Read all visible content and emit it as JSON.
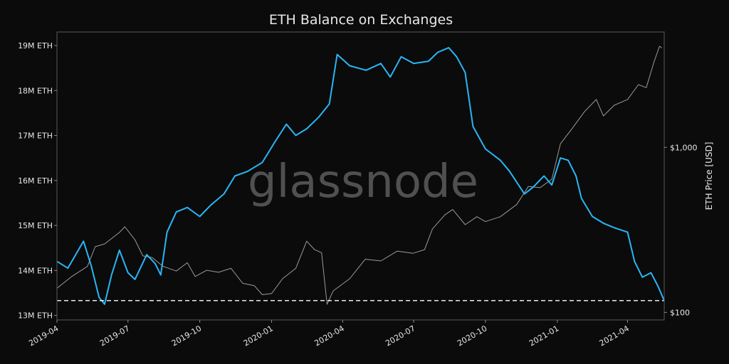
{
  "watermark": "glassnode",
  "chart_data": {
    "type": "line",
    "title": "ETH Balance on Exchanges",
    "xlabel": "",
    "ylabel_left": "",
    "ylabel_right": "ETH Price [USD]",
    "x_ticks": [
      "2019-04",
      "2019-07",
      "2019-10",
      "2020-01",
      "2020-04",
      "2020-07",
      "2020-10",
      "2021-01",
      "2021-04"
    ],
    "x_range": [
      "2019-04-01",
      "2021-05-18"
    ],
    "y_left": {
      "unit": "M ETH",
      "ylim": [
        12.9,
        19.3
      ],
      "ticks": [
        13,
        14,
        15,
        16,
        17,
        18,
        19
      ],
      "tick_labels": [
        "13M ETH",
        "14M ETH",
        "15M ETH",
        "16M ETH",
        "17M ETH",
        "18M ETH",
        "19M ETH"
      ]
    },
    "y_right": {
      "scale": "log",
      "ylim": [
        90,
        5000
      ],
      "ticks": [
        100,
        1000
      ],
      "tick_labels": [
        "$100",
        "$1,000"
      ]
    },
    "reference_line": {
      "value": 13.33,
      "axis": "left",
      "style": "dashed",
      "color": "#ffffff"
    },
    "series": [
      {
        "axis": "left",
        "color": "#29b6f6",
        "points": [
          [
            "2019-04-01",
            14.2
          ],
          [
            "2019-04-15",
            14.05
          ],
          [
            "2019-04-25",
            14.35
          ],
          [
            "2019-05-05",
            14.65
          ],
          [
            "2019-05-15",
            14.1
          ],
          [
            "2019-05-25",
            13.4
          ],
          [
            "2019-06-01",
            13.25
          ],
          [
            "2019-06-10",
            13.9
          ],
          [
            "2019-06-20",
            14.45
          ],
          [
            "2019-07-01",
            13.95
          ],
          [
            "2019-07-10",
            13.8
          ],
          [
            "2019-07-25",
            14.35
          ],
          [
            "2019-08-05",
            14.15
          ],
          [
            "2019-08-12",
            13.9
          ],
          [
            "2019-08-20",
            14.85
          ],
          [
            "2019-09-01",
            15.3
          ],
          [
            "2019-09-15",
            15.4
          ],
          [
            "2019-10-01",
            15.2
          ],
          [
            "2019-10-15",
            15.45
          ],
          [
            "2019-11-01",
            15.7
          ],
          [
            "2019-11-15",
            16.1
          ],
          [
            "2019-12-01",
            16.2
          ],
          [
            "2019-12-20",
            16.4
          ],
          [
            "2020-01-05",
            16.85
          ],
          [
            "2020-01-20",
            17.25
          ],
          [
            "2020-02-01",
            17.0
          ],
          [
            "2020-02-15",
            17.15
          ],
          [
            "2020-03-01",
            17.4
          ],
          [
            "2020-03-15",
            17.7
          ],
          [
            "2020-03-25",
            18.8
          ],
          [
            "2020-04-10",
            18.55
          ],
          [
            "2020-05-01",
            18.45
          ],
          [
            "2020-05-20",
            18.6
          ],
          [
            "2020-06-01",
            18.3
          ],
          [
            "2020-06-15",
            18.75
          ],
          [
            "2020-07-01",
            18.6
          ],
          [
            "2020-07-20",
            18.65
          ],
          [
            "2020-08-01",
            18.85
          ],
          [
            "2020-08-15",
            18.95
          ],
          [
            "2020-08-25",
            18.75
          ],
          [
            "2020-09-05",
            18.4
          ],
          [
            "2020-09-15",
            17.2
          ],
          [
            "2020-10-01",
            16.7
          ],
          [
            "2020-10-20",
            16.45
          ],
          [
            "2020-11-01",
            16.2
          ],
          [
            "2020-11-20",
            15.7
          ],
          [
            "2020-12-01",
            15.85
          ],
          [
            "2020-12-15",
            16.1
          ],
          [
            "2020-12-25",
            15.9
          ],
          [
            "2021-01-05",
            16.5
          ],
          [
            "2021-01-15",
            16.45
          ],
          [
            "2021-01-25",
            16.1
          ],
          [
            "2021-02-01",
            15.6
          ],
          [
            "2021-02-15",
            15.2
          ],
          [
            "2021-03-01",
            15.05
          ],
          [
            "2021-03-15",
            14.95
          ],
          [
            "2021-04-01",
            14.85
          ],
          [
            "2021-04-10",
            14.2
          ],
          [
            "2021-04-20",
            13.85
          ],
          [
            "2021-05-01",
            13.95
          ],
          [
            "2021-05-10",
            13.65
          ],
          [
            "2021-05-18",
            13.33
          ]
        ]
      },
      {
        "axis": "right",
        "color": "#9a9a9a",
        "points": [
          [
            "2019-04-01",
            140
          ],
          [
            "2019-04-20",
            165
          ],
          [
            "2019-05-10",
            190
          ],
          [
            "2019-05-20",
            250
          ],
          [
            "2019-06-01",
            260
          ],
          [
            "2019-06-20",
            305
          ],
          [
            "2019-06-27",
            330
          ],
          [
            "2019-07-10",
            275
          ],
          [
            "2019-07-20",
            220
          ],
          [
            "2019-08-01",
            215
          ],
          [
            "2019-08-15",
            190
          ],
          [
            "2019-09-01",
            178
          ],
          [
            "2019-09-15",
            200
          ],
          [
            "2019-09-25",
            165
          ],
          [
            "2019-10-10",
            180
          ],
          [
            "2019-10-25",
            175
          ],
          [
            "2019-11-10",
            185
          ],
          [
            "2019-11-25",
            150
          ],
          [
            "2019-12-10",
            145
          ],
          [
            "2019-12-20",
            128
          ],
          [
            "2020-01-01",
            130
          ],
          [
            "2020-01-15",
            160
          ],
          [
            "2020-02-01",
            185
          ],
          [
            "2020-02-15",
            270
          ],
          [
            "2020-02-25",
            240
          ],
          [
            "2020-03-05",
            230
          ],
          [
            "2020-03-12",
            112
          ],
          [
            "2020-03-20",
            135
          ],
          [
            "2020-04-10",
            160
          ],
          [
            "2020-04-30",
            210
          ],
          [
            "2020-05-20",
            205
          ],
          [
            "2020-06-10",
            235
          ],
          [
            "2020-06-30",
            228
          ],
          [
            "2020-07-15",
            240
          ],
          [
            "2020-07-25",
            320
          ],
          [
            "2020-08-10",
            390
          ],
          [
            "2020-08-20",
            420
          ],
          [
            "2020-09-05",
            340
          ],
          [
            "2020-09-20",
            380
          ],
          [
            "2020-10-01",
            355
          ],
          [
            "2020-10-20",
            380
          ],
          [
            "2020-11-10",
            450
          ],
          [
            "2020-11-25",
            580
          ],
          [
            "2020-12-10",
            570
          ],
          [
            "2020-12-25",
            640
          ],
          [
            "2021-01-05",
            1050
          ],
          [
            "2021-01-20",
            1300
          ],
          [
            "2021-02-05",
            1650
          ],
          [
            "2021-02-20",
            1950
          ],
          [
            "2021-03-01",
            1550
          ],
          [
            "2021-03-15",
            1800
          ],
          [
            "2021-04-01",
            1950
          ],
          [
            "2021-04-15",
            2400
          ],
          [
            "2021-04-25",
            2300
          ],
          [
            "2021-05-05",
            3300
          ],
          [
            "2021-05-12",
            4100
          ],
          [
            "2021-05-15",
            4000
          ]
        ]
      }
    ]
  }
}
